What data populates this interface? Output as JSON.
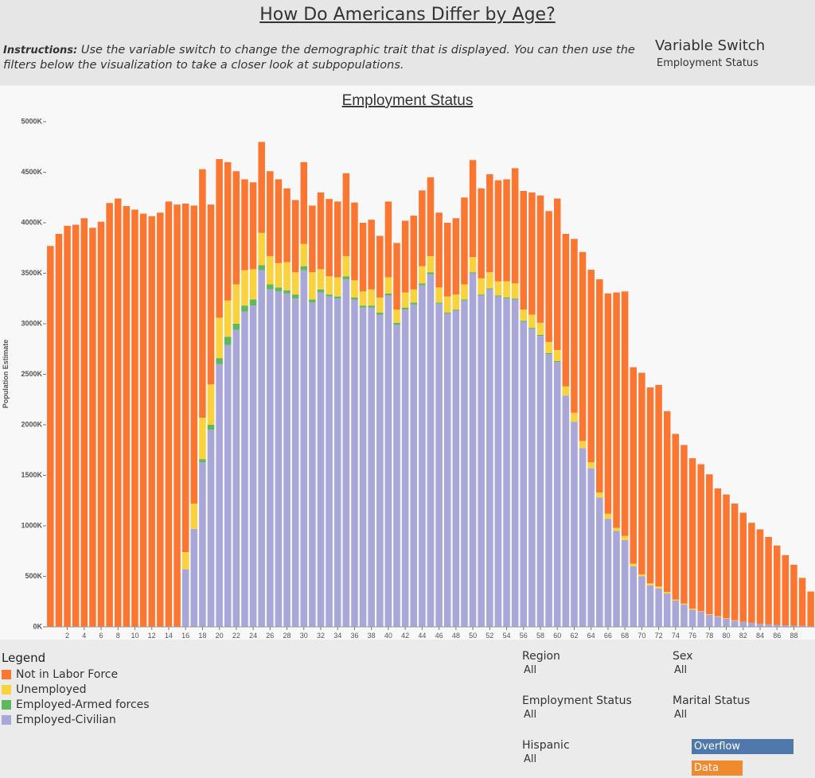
{
  "header": {
    "title": "How Do Americans Differ by Age?",
    "instructions_label": "Instructions:",
    "instructions_text": "Use the variable switch to change the demographic trait that is displayed. You can then use the filters below the visualization to take a closer look at subpopulations.",
    "switch_label": "Variable Switch",
    "switch_value": "Employment Status"
  },
  "chart_data": {
    "type": "stacked-bar",
    "title": "Employment Status",
    "y_label": "Population Estimate",
    "x": [
      0,
      1,
      2,
      3,
      4,
      5,
      6,
      7,
      8,
      9,
      10,
      11,
      12,
      13,
      14,
      15,
      16,
      17,
      18,
      19,
      20,
      21,
      22,
      23,
      24,
      25,
      26,
      27,
      28,
      29,
      30,
      31,
      32,
      33,
      34,
      35,
      36,
      37,
      38,
      39,
      40,
      41,
      42,
      43,
      44,
      45,
      46,
      47,
      48,
      49,
      50,
      51,
      52,
      53,
      54,
      55,
      56,
      57,
      58,
      59,
      60,
      61,
      62,
      63,
      64,
      65,
      66,
      67,
      68,
      69,
      70,
      71,
      72,
      73,
      74,
      75,
      76,
      77,
      78,
      79,
      80,
      81,
      82,
      83,
      84,
      85,
      86,
      87,
      88,
      89,
      90
    ],
    "xlim": [
      -0.5,
      90.5
    ],
    "xticks": [
      2,
      4,
      6,
      8,
      10,
      12,
      14,
      16,
      18,
      20,
      22,
      24,
      26,
      28,
      30,
      32,
      34,
      36,
      38,
      40,
      42,
      44,
      46,
      48,
      50,
      52,
      54,
      56,
      58,
      60,
      62,
      64,
      66,
      68,
      70,
      72,
      74,
      76,
      78,
      80,
      82,
      84,
      86,
      88
    ],
    "ylim": [
      0,
      5000
    ],
    "yticks": [
      {
        "value": 0,
        "label": "0K"
      },
      {
        "value": 500,
        "label": "500K"
      },
      {
        "value": 1000,
        "label": "1000K"
      },
      {
        "value": 1500,
        "label": "1500K"
      },
      {
        "value": 2000,
        "label": "2000K"
      },
      {
        "value": 2500,
        "label": "2500K"
      },
      {
        "value": 3000,
        "label": "3000K"
      },
      {
        "value": 3500,
        "label": "3500K"
      },
      {
        "value": 4000,
        "label": "4000K"
      },
      {
        "value": 4500,
        "label": "4500K"
      },
      {
        "value": 5000,
        "label": "5000K"
      }
    ],
    "legend_title": "Legend",
    "series": [
      {
        "name": "Employed-Civilian",
        "color": "#a9a7d8",
        "values": [
          0,
          0,
          0,
          0,
          0,
          0,
          0,
          0,
          0,
          0,
          0,
          0,
          0,
          0,
          0,
          0,
          570,
          970,
          1630,
          1950,
          2600,
          2790,
          2940,
          3120,
          3180,
          3530,
          3340,
          3320,
          3300,
          3250,
          3530,
          3210,
          3310,
          3270,
          3250,
          3440,
          3240,
          3160,
          3160,
          3090,
          3280,
          2990,
          3140,
          3190,
          3380,
          3490,
          3200,
          3100,
          3130,
          3230,
          3500,
          3280,
          3340,
          3270,
          3250,
          3240,
          3020,
          2950,
          2880,
          2700,
          2620,
          2290,
          2030,
          1770,
          1570,
          1280,
          1070,
          950,
          860,
          600,
          500,
          410,
          380,
          330,
          260,
          220,
          170,
          150,
          120,
          100,
          80,
          60,
          50,
          40,
          30,
          25,
          20,
          15,
          10,
          10,
          5
        ]
      },
      {
        "name": "Employed-Armed forces",
        "color": "#5fb760",
        "values": [
          0,
          0,
          0,
          0,
          0,
          0,
          0,
          0,
          0,
          0,
          0,
          0,
          0,
          0,
          0,
          0,
          0,
          0,
          30,
          50,
          60,
          80,
          60,
          60,
          60,
          50,
          50,
          40,
          30,
          40,
          40,
          30,
          30,
          20,
          20,
          30,
          20,
          20,
          20,
          20,
          20,
          20,
          20,
          20,
          20,
          20,
          10,
          10,
          10,
          10,
          10,
          10,
          10,
          10,
          10,
          10,
          10,
          10,
          10,
          10,
          10,
          0,
          0,
          0,
          0,
          0,
          0,
          0,
          0,
          0,
          0,
          0,
          0,
          0,
          0,
          0,
          0,
          0,
          0,
          0,
          0,
          0,
          0,
          0,
          0,
          0,
          0,
          0,
          0,
          0,
          0
        ]
      },
      {
        "name": "Unemployed",
        "color": "#f9d23c",
        "values": [
          0,
          0,
          0,
          0,
          0,
          0,
          0,
          0,
          0,
          0,
          0,
          0,
          0,
          0,
          0,
          0,
          170,
          250,
          410,
          400,
          400,
          360,
          390,
          350,
          300,
          320,
          280,
          240,
          280,
          220,
          220,
          270,
          200,
          180,
          190,
          200,
          170,
          140,
          160,
          150,
          160,
          130,
          150,
          130,
          170,
          160,
          150,
          160,
          150,
          150,
          150,
          160,
          160,
          140,
          160,
          150,
          110,
          130,
          120,
          110,
          110,
          90,
          90,
          70,
          60,
          50,
          50,
          30,
          40,
          25,
          20,
          20,
          20,
          15,
          10,
          10,
          10,
          5,
          5,
          5,
          5,
          5,
          0,
          0,
          0,
          0,
          0,
          0,
          0,
          0,
          0
        ]
      },
      {
        "name": "Not in Labor Force",
        "color": "#fb7631",
        "values": [
          3770,
          3890,
          3970,
          3980,
          4045,
          3950,
          4010,
          4195,
          4240,
          4165,
          4130,
          4090,
          4065,
          4100,
          4210,
          4180,
          3450,
          2950,
          2460,
          1780,
          1570,
          1370,
          1120,
          900,
          860,
          900,
          840,
          830,
          730,
          715,
          810,
          660,
          760,
          765,
          750,
          820,
          770,
          680,
          690,
          610,
          750,
          660,
          710,
          730,
          750,
          780,
          740,
          730,
          755,
          860,
          960,
          890,
          970,
          1000,
          1010,
          1140,
          1175,
          1210,
          1260,
          1295,
          1500,
          1510,
          1720,
          1870,
          1905,
          2110,
          2180,
          2330,
          2420,
          1945,
          1995,
          1940,
          1995,
          1790,
          1640,
          1570,
          1490,
          1455,
          1385,
          1265,
          1225,
          1155,
          1080,
          990,
          935,
          865,
          785,
          695,
          605,
          475,
          345
        ]
      }
    ]
  },
  "filters": [
    {
      "label": "Region",
      "value": "All"
    },
    {
      "label": "Sex",
      "value": "All"
    },
    {
      "label": "Employment Status",
      "value": "All"
    },
    {
      "label": "Marital Status",
      "value": "All"
    },
    {
      "label": "Hispanic",
      "value": "All"
    }
  ],
  "buttons": [
    "Overflow",
    "Data"
  ]
}
